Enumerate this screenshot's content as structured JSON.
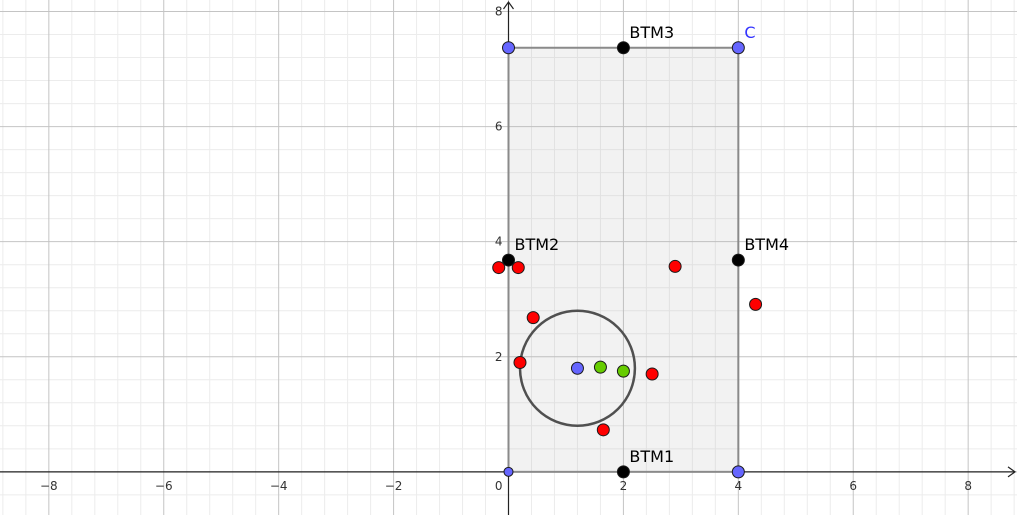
{
  "chart_data": {
    "type": "scatter",
    "xlim": [
      -8.85,
      8.85
    ],
    "ylim": [
      -0.75,
      8.2
    ],
    "grid": true,
    "x_ticks": [
      {
        "value": -8,
        "label": "−8"
      },
      {
        "value": -6,
        "label": "−6"
      },
      {
        "value": -4,
        "label": "−4"
      },
      {
        "value": -2,
        "label": "−2"
      },
      {
        "value": 2,
        "label": "2"
      },
      {
        "value": 4,
        "label": "4"
      },
      {
        "value": 6,
        "label": "6"
      },
      {
        "value": 8,
        "label": "8"
      }
    ],
    "y_ticks": [
      {
        "value": 2,
        "label": "2"
      },
      {
        "value": 4,
        "label": "4"
      },
      {
        "value": 6,
        "label": "6"
      },
      {
        "value": 8,
        "label": "8"
      }
    ],
    "origin_label": "0",
    "rectangle": {
      "x1": 0,
      "y1": 0,
      "x2": 4,
      "y2": 7.37
    },
    "circle": {
      "cx": 1.2,
      "cy": 1.8,
      "r": 1
    },
    "colors": {
      "blue": "#6666ff",
      "black": "#000000",
      "red": "#ff0000",
      "green": "#66cc00",
      "label_blue": "#3333ff"
    },
    "points": [
      {
        "name": "C",
        "x": 4,
        "y": 7.37,
        "color": "blue",
        "size": "large",
        "label": "C",
        "label_color": "label_blue"
      },
      {
        "name": "top-left-vertex",
        "x": 0,
        "y": 7.37,
        "color": "blue",
        "size": "large"
      },
      {
        "name": "bottom-right-vertex",
        "x": 4,
        "y": 0,
        "color": "blue",
        "size": "large"
      },
      {
        "name": "origin-vertex",
        "x": 0,
        "y": 0,
        "color": "blue",
        "size": "small"
      },
      {
        "name": "BTM1",
        "x": 2,
        "y": 0,
        "color": "black",
        "size": "large",
        "label": "BTM1"
      },
      {
        "name": "BTM2",
        "x": 0,
        "y": 3.68,
        "color": "black",
        "size": "large",
        "label": "BTM2"
      },
      {
        "name": "BTM3",
        "x": 2,
        "y": 7.37,
        "color": "black",
        "size": "large",
        "label": "BTM3"
      },
      {
        "name": "BTM4",
        "x": 4,
        "y": 3.68,
        "color": "black",
        "size": "large",
        "label": "BTM4"
      },
      {
        "name": "red-1",
        "x": -0.17,
        "y": 3.55,
        "color": "red",
        "size": "large"
      },
      {
        "name": "red-2",
        "x": 0.17,
        "y": 3.55,
        "color": "red",
        "size": "large"
      },
      {
        "name": "red-3",
        "x": 0.43,
        "y": 2.68,
        "color": "red",
        "size": "large"
      },
      {
        "name": "red-4",
        "x": 0.2,
        "y": 1.9,
        "color": "red",
        "size": "large"
      },
      {
        "name": "red-5",
        "x": 2.9,
        "y": 3.57,
        "color": "red",
        "size": "large"
      },
      {
        "name": "red-6",
        "x": 4.3,
        "y": 2.91,
        "color": "red",
        "size": "large"
      },
      {
        "name": "red-7",
        "x": 2.5,
        "y": 1.7,
        "color": "red",
        "size": "large"
      },
      {
        "name": "red-8",
        "x": 1.65,
        "y": 0.73,
        "color": "red",
        "size": "large"
      },
      {
        "name": "circle-center",
        "x": 1.2,
        "y": 1.8,
        "color": "blue",
        "size": "large"
      },
      {
        "name": "green-1",
        "x": 1.6,
        "y": 1.82,
        "color": "green",
        "size": "large"
      },
      {
        "name": "green-2",
        "x": 2.0,
        "y": 1.75,
        "color": "green",
        "size": "large"
      }
    ]
  }
}
